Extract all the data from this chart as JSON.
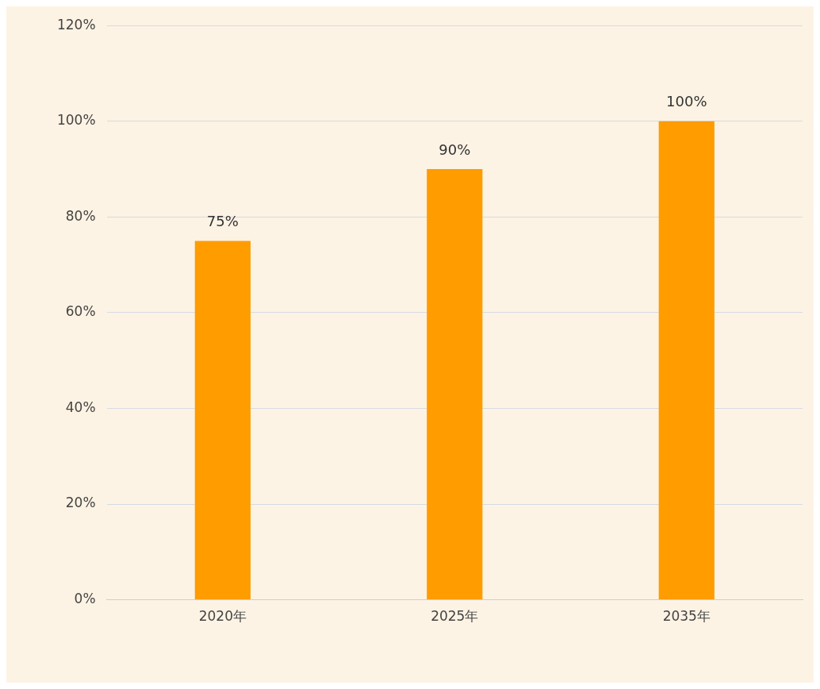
{
  "chart_data": {
    "type": "bar",
    "categories": [
      "2020年",
      "2025年",
      "2035年"
    ],
    "values": [
      75,
      90,
      100
    ],
    "value_labels": [
      "75%",
      "90%",
      "100%"
    ],
    "color": "#ff9c00",
    "ylim": [
      0,
      120
    ],
    "yticks": [
      {
        "value": 0,
        "label": "0%"
      },
      {
        "value": 20,
        "label": "20%"
      },
      {
        "value": 40,
        "label": "40%"
      },
      {
        "value": 60,
        "label": "60%"
      },
      {
        "value": 80,
        "label": "80%"
      },
      {
        "value": 100,
        "label": "100%"
      },
      {
        "value": 120,
        "label": "120%"
      }
    ],
    "grid": "y"
  }
}
